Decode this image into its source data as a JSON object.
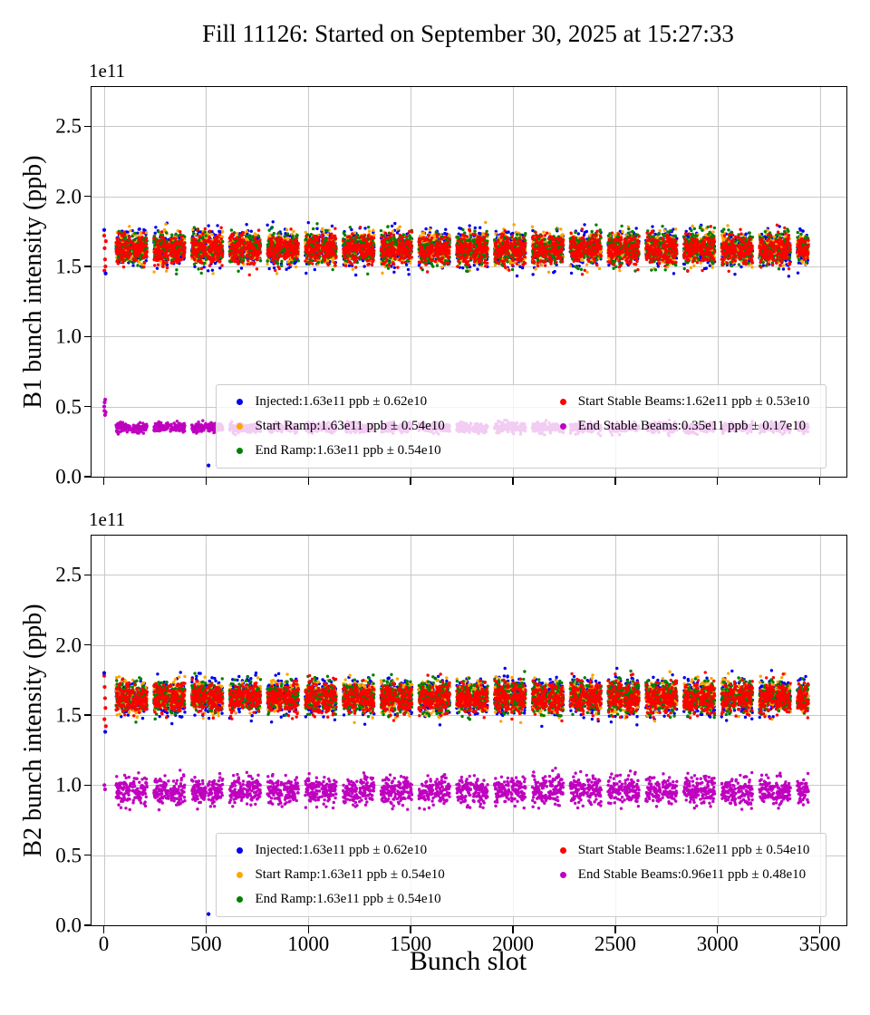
{
  "title": "Fill 11126: Started on September 30, 2025 at 15:27:33",
  "xlabel": "Bunch slot",
  "slot_pattern": {
    "first_slot": 60,
    "train_length": 72,
    "intra_gap": 8,
    "trains_per_group": 2,
    "group_gap": 33,
    "last_slot": 3444
  },
  "chart_data": [
    {
      "type": "scatter",
      "ylabel": "B1 bunch intensity (ppb)",
      "offset_label": "1e11",
      "xlim": [
        -60,
        3630
      ],
      "ylim": [
        0,
        2.78
      ],
      "xticks": [
        0,
        500,
        1000,
        1500,
        2000,
        2500,
        3000,
        3500
      ],
      "yticks": [
        "0.0",
        "0.5",
        "1.0",
        "1.5",
        "2.0",
        "2.5"
      ],
      "grid": true,
      "show_xtick_labels": false,
      "legend_position": "lower center",
      "series": [
        {
          "name": "Injected",
          "label": "Injected:1.63e11 ppb ± 0.62e10",
          "color": "#0000ee",
          "mean": 1.63,
          "sigma": 0.062
        },
        {
          "name": "Start Ramp",
          "label": "Start Ramp:1.63e11 ppb ± 0.54e10",
          "color": "#ffa500",
          "mean": 1.63,
          "sigma": 0.054
        },
        {
          "name": "End Ramp",
          "label": "End Ramp:1.63e11 ppb ± 0.54e10",
          "color": "#008000",
          "mean": 1.63,
          "sigma": 0.054
        },
        {
          "name": "Start Stable Beams",
          "label": "Start Stable Beams:1.62e11 ppb ± 0.53e10",
          "color": "#ff0000",
          "mean": 1.62,
          "sigma": 0.053
        },
        {
          "name": "End Stable Beams",
          "label": "End Stable Beams:0.35e11 ppb ± 0.17e10",
          "color": "#bf00bf",
          "mean": 0.35,
          "sigma": 0.017
        }
      ],
      "extras": [
        {
          "color": "#bf00bf",
          "points": [
            [
              2,
              0.5
            ],
            [
              4,
              0.53
            ],
            [
              7,
              0.55
            ],
            [
              3,
              0.47
            ],
            [
              6,
              0.44
            ],
            [
              9,
              0.46
            ]
          ]
        },
        {
          "color": "#ff0000",
          "points": [
            [
              2,
              1.72
            ],
            [
              4,
              1.63
            ],
            [
              6,
              1.55
            ],
            [
              8,
              1.5
            ],
            [
              3,
              1.47
            ],
            [
              10,
              1.68
            ]
          ]
        },
        {
          "color": "#0000ee",
          "points": [
            [
              2,
              1.76
            ],
            [
              9,
              1.45
            ],
            [
              512,
              0.08
            ]
          ]
        }
      ]
    },
    {
      "type": "scatter",
      "ylabel": "B2 bunch intensity (ppb)",
      "offset_label": "1e11",
      "xlim": [
        -60,
        3630
      ],
      "ylim": [
        0,
        2.78
      ],
      "xticks": [
        0,
        500,
        1000,
        1500,
        2000,
        2500,
        3000,
        3500
      ],
      "yticks": [
        "0.0",
        "0.5",
        "1.0",
        "1.5",
        "2.0",
        "2.5"
      ],
      "grid": true,
      "show_xtick_labels": true,
      "legend_position": "lower center",
      "series": [
        {
          "name": "Injected",
          "label": "Injected:1.63e11 ppb ± 0.62e10",
          "color": "#0000ee",
          "mean": 1.63,
          "sigma": 0.062
        },
        {
          "name": "Start Ramp",
          "label": "Start Ramp:1.63e11 ppb ± 0.54e10",
          "color": "#ffa500",
          "mean": 1.63,
          "sigma": 0.054
        },
        {
          "name": "End Ramp",
          "label": "End Ramp:1.63e11 ppb ± 0.54e10",
          "color": "#008000",
          "mean": 1.63,
          "sigma": 0.054
        },
        {
          "name": "Start Stable Beams",
          "label": "Start Stable Beams:1.62e11 ppb ± 0.54e10",
          "color": "#ff0000",
          "mean": 1.62,
          "sigma": 0.054
        },
        {
          "name": "End Stable Beams",
          "label": "End Stable Beams:0.96e11 ppb ± 0.48e10",
          "color": "#bf00bf",
          "mean": 0.96,
          "sigma": 0.048
        }
      ],
      "extras": [
        {
          "color": "#ff0000",
          "points": [
            [
              2,
              1.78
            ],
            [
              4,
              1.7
            ],
            [
              6,
              1.62
            ],
            [
              8,
              1.55
            ],
            [
              3,
              1.47
            ],
            [
              10,
              1.42
            ]
          ]
        },
        {
          "color": "#0000ee",
          "points": [
            [
              2,
              1.8
            ],
            [
              7,
              1.38
            ],
            [
              512,
              0.08
            ]
          ]
        },
        {
          "color": "#bf00bf",
          "points": [
            [
              3,
              1.0
            ],
            [
              6,
              0.97
            ]
          ]
        }
      ]
    }
  ]
}
